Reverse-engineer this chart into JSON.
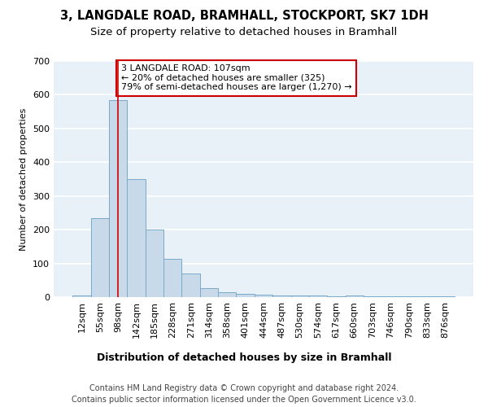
{
  "title1": "3, LANGDALE ROAD, BRAMHALL, STOCKPORT, SK7 1DH",
  "title2": "Size of property relative to detached houses in Bramhall",
  "xlabel": "Distribution of detached houses by size in Bramhall",
  "ylabel": "Number of detached properties",
  "categories": [
    "12sqm",
    "55sqm",
    "98sqm",
    "142sqm",
    "185sqm",
    "228sqm",
    "271sqm",
    "314sqm",
    "358sqm",
    "401sqm",
    "444sqm",
    "487sqm",
    "530sqm",
    "574sqm",
    "617sqm",
    "660sqm",
    "703sqm",
    "746sqm",
    "790sqm",
    "833sqm",
    "876sqm"
  ],
  "values": [
    5,
    235,
    585,
    350,
    200,
    113,
    70,
    27,
    15,
    10,
    7,
    5,
    5,
    5,
    2,
    5,
    3,
    2,
    2,
    2,
    2
  ],
  "bar_color": "#c8daea",
  "bar_edge_color": "#7aaac8",
  "vline_x": 2,
  "vline_color": "#cc0000",
  "annotation_text": "3 LANGDALE ROAD: 107sqm\n← 20% of detached houses are smaller (325)\n79% of semi-detached houses are larger (1,270) →",
  "annotation_box_color": "#ffffff",
  "annotation_box_edge_color": "#cc0000",
  "ylim": [
    0,
    700
  ],
  "yticks": [
    0,
    100,
    200,
    300,
    400,
    500,
    600,
    700
  ],
  "footer1": "Contains HM Land Registry data © Crown copyright and database right 2024.",
  "footer2": "Contains public sector information licensed under the Open Government Licence v3.0.",
  "bg_color": "#ffffff",
  "plot_bg_color": "#e8f0f8",
  "grid_color": "#ffffff",
  "title1_fontsize": 10.5,
  "title2_fontsize": 9.5,
  "xlabel_fontsize": 9,
  "ylabel_fontsize": 8,
  "tick_fontsize": 8,
  "annot_fontsize": 8,
  "footer_fontsize": 7
}
